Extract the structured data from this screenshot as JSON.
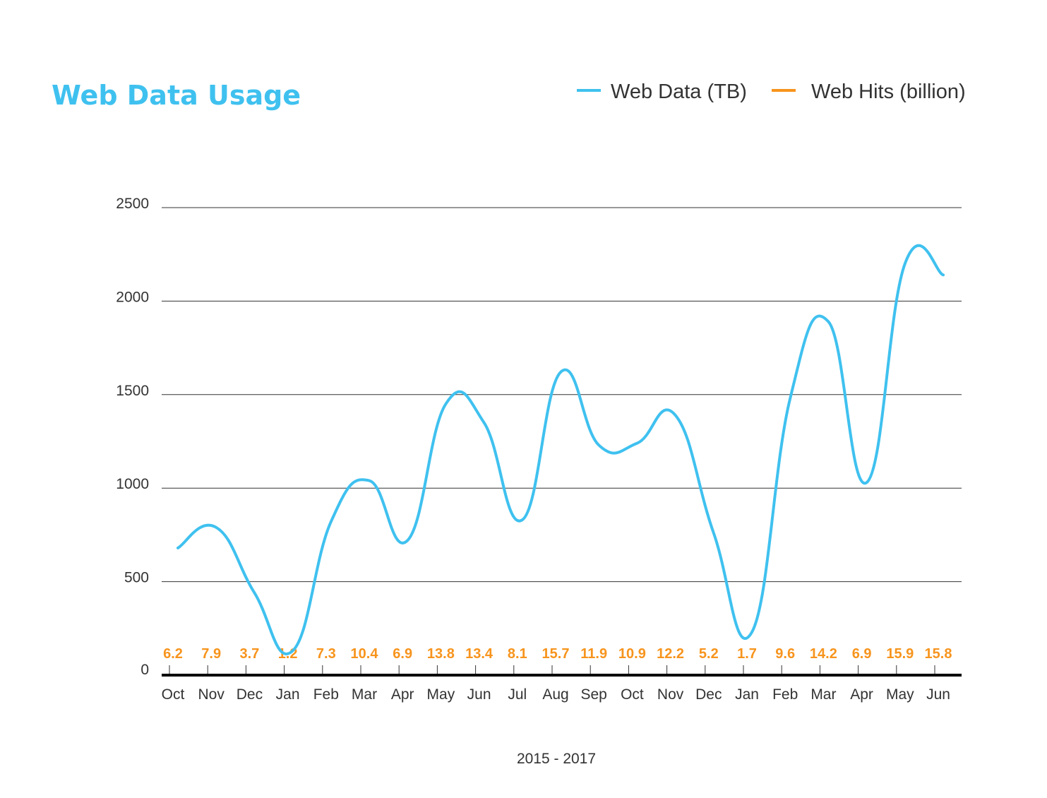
{
  "colors": {
    "title": "#3fc1ef",
    "web_data": "#3fc1ef",
    "web_hits": "#f7941d",
    "grid": "#333333",
    "axis": "#000000",
    "text": "#333333"
  },
  "chart_data": {
    "type": "line",
    "title": "Web Data Usage",
    "xlabel": "2015 - 2017",
    "ylabel": "",
    "ylim": [
      0,
      2500
    ],
    "yticks": [
      0,
      500,
      1000,
      1500,
      2000,
      2500
    ],
    "grid": true,
    "legend_position": "top-right",
    "categories": [
      "Oct",
      "Nov",
      "Dec",
      "Jan",
      "Feb",
      "Mar",
      "Apr",
      "May",
      "Jun",
      "Jul",
      "Aug",
      "Sep",
      "Oct",
      "Nov",
      "Dec",
      "Jan",
      "Feb",
      "Mar",
      "Apr",
      "May",
      "Jun"
    ],
    "series": [
      {
        "name": "Web Data (TB)",
        "values": [
          680,
          790,
          440,
          130,
          820,
          1040,
          720,
          1450,
          1350,
          830,
          1620,
          1230,
          1240,
          1390,
          760,
          230,
          1480,
          1890,
          1030,
          2200,
          2140
        ]
      },
      {
        "name": "Web Hits (billion)",
        "values": [
          6.2,
          7.9,
          3.7,
          1.2,
          7.3,
          10.4,
          6.9,
          13.8,
          13.4,
          8.1,
          15.7,
          11.9,
          10.9,
          12.2,
          5.2,
          1.7,
          9.6,
          14.2,
          6.9,
          15.9,
          15.8
        ],
        "labels": [
          "6.2",
          "7.9",
          "3.7",
          "1.2",
          "7.3",
          "10.4",
          "6.9",
          "13.8",
          "13.4",
          "8.1",
          "15.7",
          "11.9",
          "10.9",
          "12.2",
          "5.2",
          "1.7",
          "9.6",
          "14.2",
          "6.9",
          "15.9",
          "15.8"
        ]
      }
    ]
  }
}
